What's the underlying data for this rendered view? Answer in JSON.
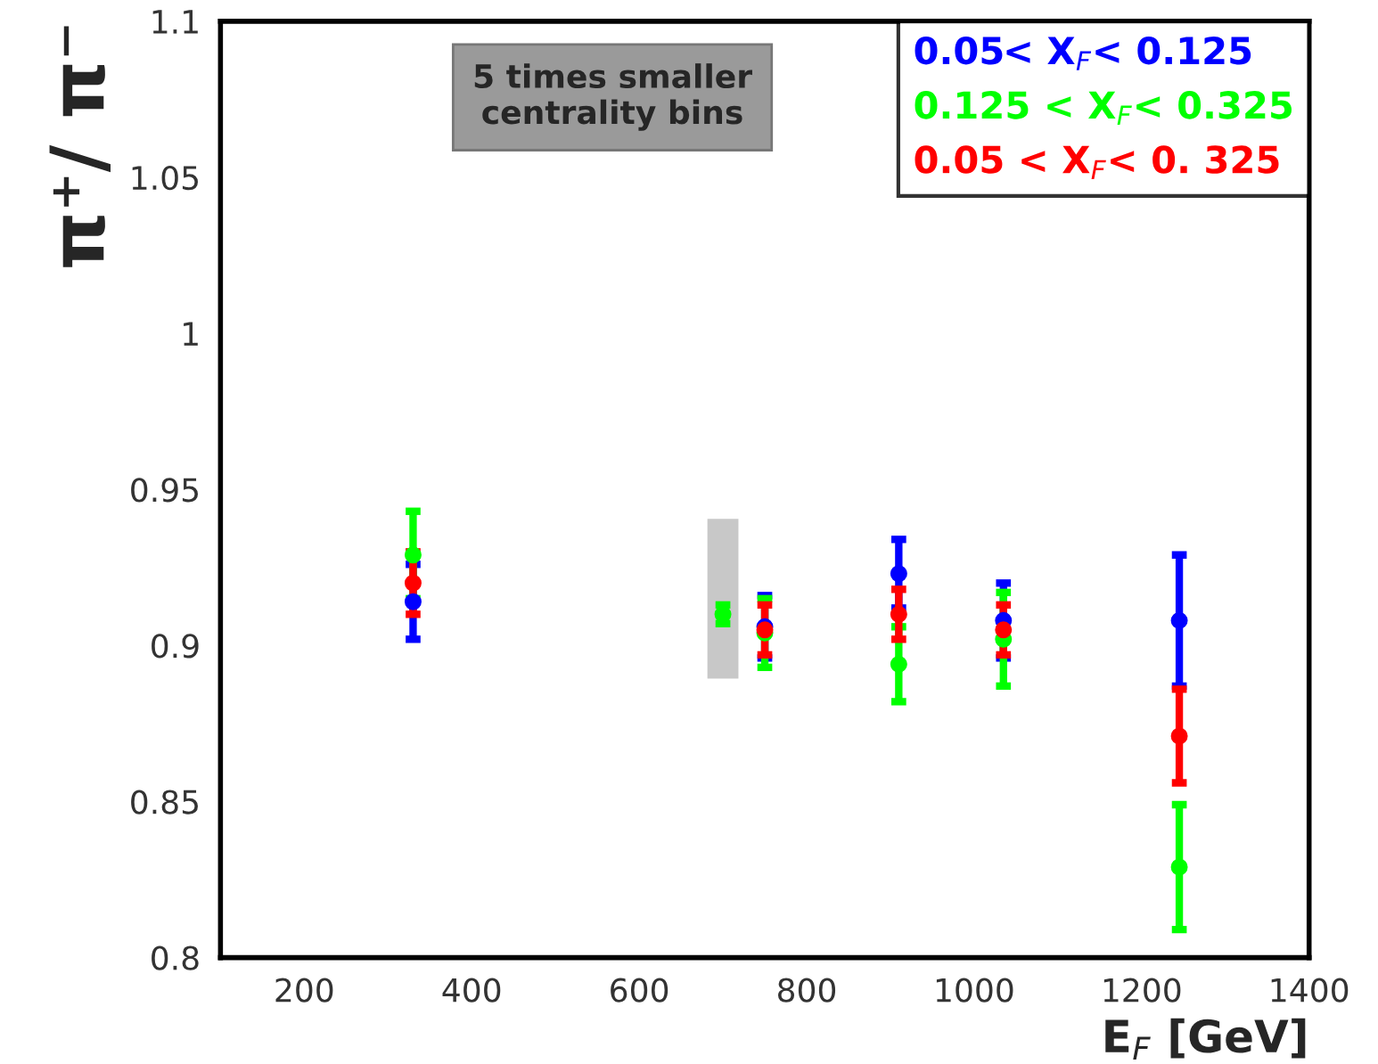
{
  "chart_data": {
    "type": "scatter",
    "xlabel": "E$_{F}$ [GeV]",
    "ylabel": "π⁺/ π⁻",
    "xlim": [
      100,
      1400
    ],
    "xticks": [
      200,
      400,
      600,
      800,
      1000,
      1200,
      1400
    ],
    "ylim": [
      0.8,
      1.1
    ],
    "yticks": [
      0.8,
      0.85,
      0.9,
      0.95,
      1,
      1.05,
      1.1
    ],
    "marker": "circle",
    "grid": false,
    "legend": "top right",
    "annotations": [
      "5 times smaller centrality bins"
    ],
    "series": [
      {
        "type": "bar",
        "color": "#c8c8c8",
        "x": [
          700
        ],
        "base": [
          0.889
        ],
        "values": [
          0.052
        ]
      },
      {
        "name": "0.05< X$_{F}$< 0.125",
        "color": "#0000ff",
        "x": [
          330,
          750,
          910,
          1035,
          1245
        ],
        "values": [
          0.914,
          0.906,
          0.923,
          0.908,
          0.908
        ],
        "errors": [
          0.012,
          0.01,
          0.011,
          0.012,
          0.021
        ]
      },
      {
        "name": "0.125 < X$_{F}$< 0.325",
        "color": "#00ff00",
        "x": [
          330,
          700,
          750,
          910,
          1035,
          1245
        ],
        "values": [
          0.929,
          0.91,
          0.904,
          0.894,
          0.902,
          0.829
        ],
        "errors": [
          0.014,
          0.003,
          0.011,
          0.012,
          0.015,
          0.02
        ]
      },
      {
        "name": "0.05 < X$_{F}$< 0. 325",
        "color": "#ff0000",
        "x": [
          330,
          750,
          910,
          1035,
          1245
        ],
        "values": [
          0.92,
          0.905,
          0.91,
          0.905,
          0.871
        ],
        "errors": [
          0.01,
          0.008,
          0.008,
          0.008,
          0.015
        ]
      }
    ]
  }
}
